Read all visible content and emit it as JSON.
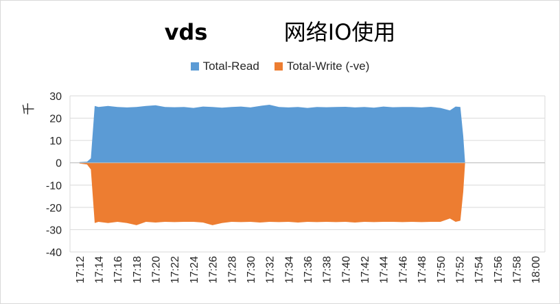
{
  "chart_data": {
    "type": "area",
    "title_latin": "vds",
    "title_cjk": "网络IO使用",
    "ylabel": "千",
    "ylim": [
      -40,
      30
    ],
    "yticks": [
      30,
      20,
      10,
      0,
      -10,
      -20,
      -30,
      -40
    ],
    "legend_position": "top",
    "x_ticks": [
      "17:12",
      "17:14",
      "17:16",
      "17:18",
      "17:20",
      "17:22",
      "17:24",
      "17:26",
      "17:28",
      "17:30",
      "17:32",
      "17:34",
      "17:36",
      "17:38",
      "17:40",
      "17:42",
      "17:44",
      "17:46",
      "17:48",
      "17:50",
      "17:52",
      "17:54",
      "17:56",
      "17:58",
      "18:00"
    ],
    "series": [
      {
        "name": "Total-Read",
        "color": "#5b9bd5",
        "x_minutes_after_1712": [
          0,
          0.8,
          1.2,
          1.6,
          2,
          3,
          4,
          5,
          6,
          7,
          8,
          9,
          10,
          11,
          12,
          13,
          14,
          15,
          16,
          17,
          18,
          19,
          20,
          21,
          22,
          23,
          24,
          25,
          26,
          27,
          28,
          29,
          30,
          31,
          32,
          33,
          34,
          35,
          36,
          37,
          38,
          39,
          39.6,
          40.1,
          40.4,
          40.6
        ],
        "values": [
          0.3,
          0.5,
          2,
          25.5,
          25,
          25.5,
          25,
          24.8,
          25,
          25.5,
          25.8,
          25,
          24.9,
          25,
          24.6,
          25.2,
          25,
          24.7,
          25,
          25.2,
          24.8,
          25.5,
          26,
          25,
          24.8,
          25,
          24.6,
          25,
          24.9,
          25,
          25.1,
          24.8,
          25,
          24.7,
          25.2,
          24.9,
          25,
          25,
          24.8,
          25.1,
          24.6,
          23.5,
          25.2,
          25,
          12,
          0
        ]
      },
      {
        "name": "Total-Write (-ve)",
        "color": "#ed7d31",
        "x_minutes_after_1712": [
          0,
          0.8,
          1.2,
          1.6,
          2,
          3,
          4,
          5,
          6,
          7,
          8,
          9,
          10,
          11,
          12,
          13,
          14,
          15,
          16,
          17,
          18,
          19,
          20,
          21,
          22,
          23,
          24,
          25,
          26,
          27,
          28,
          29,
          30,
          31,
          32,
          33,
          34,
          35,
          36,
          37,
          38,
          39,
          39.6,
          40.1,
          40.4,
          40.6
        ],
        "values": [
          -0.3,
          -0.8,
          -3,
          -27,
          -26.5,
          -27,
          -26.5,
          -27,
          -28,
          -26.5,
          -26.8,
          -26.5,
          -26.6,
          -26.5,
          -26.5,
          -26.8,
          -28,
          -27,
          -26.5,
          -26.6,
          -26.5,
          -26.8,
          -26.5,
          -26.6,
          -26.5,
          -26.8,
          -26.5,
          -26.6,
          -26.5,
          -26.6,
          -26.5,
          -26.8,
          -26.5,
          -26.6,
          -26.5,
          -26.5,
          -26.6,
          -26.5,
          -26.6,
          -26.5,
          -26.5,
          -25,
          -26.5,
          -26,
          -13,
          0
        ]
      }
    ]
  }
}
